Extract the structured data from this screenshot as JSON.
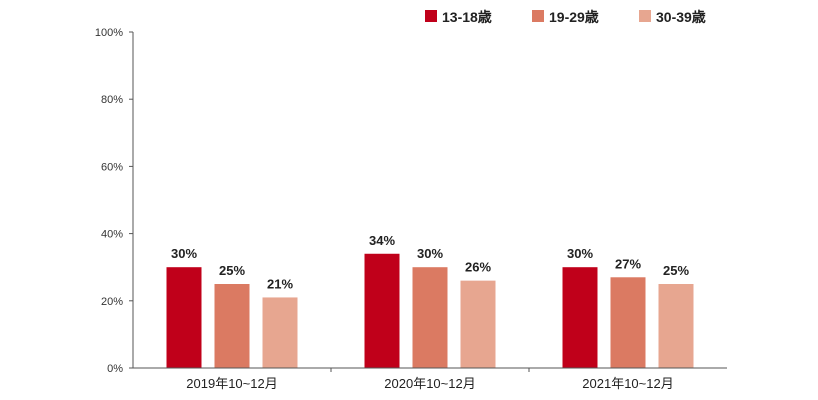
{
  "chart_data": {
    "type": "bar",
    "title": "",
    "xlabel": "",
    "ylabel": "",
    "categories": [
      "2019年10~12月",
      "2020年10~12月",
      "2021年10~12月"
    ],
    "series": [
      {
        "name": "13-18歳",
        "values": [
          30,
          34,
          30
        ],
        "color": "#c0001a"
      },
      {
        "name": "19-29歳",
        "values": [
          25,
          30,
          27
        ],
        "color": "#db7a62"
      },
      {
        "name": "30-39歳",
        "values": [
          21,
          26,
          25
        ],
        "color": "#e7a690"
      }
    ],
    "ylim": [
      0,
      100
    ],
    "yticks": [
      "0%",
      "20%",
      "40%",
      "60%",
      "80%",
      "100%"
    ],
    "value_suffix": "%",
    "grid": false,
    "legend_position": "top-right"
  }
}
